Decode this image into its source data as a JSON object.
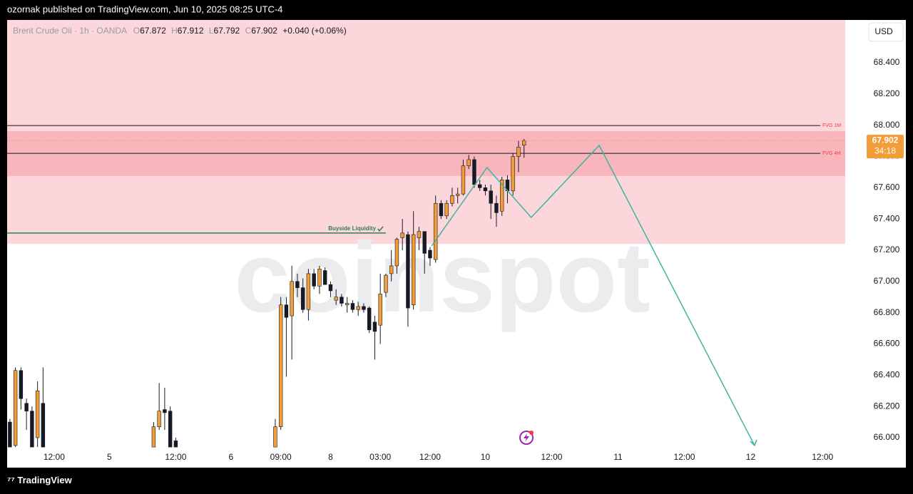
{
  "header": "ozornak published on TradingView.com, Jun 10, 2025 08:25 UTC-4",
  "footer": "TradingView",
  "watermark": "coinspot",
  "chart_data": {
    "type": "candlestick",
    "title": "Brent Crude Oil · 1h · OANDA",
    "legend": {
      "o_label": "O",
      "open": 67.872,
      "h_label": "H",
      "high": 67.912,
      "l_label": "L",
      "low": 67.792,
      "c_label": "C",
      "close": 67.902,
      "change": "+0.040 (+0.06%)"
    },
    "currency": "USD",
    "countdown": "34:18",
    "up_color": "#f29d38",
    "down_color": "#161a25",
    "x": [
      0,
      1,
      2,
      3,
      4,
      5,
      6,
      26,
      27,
      28,
      29,
      30,
      48,
      49,
      50,
      51,
      52,
      53,
      54,
      55,
      56,
      57,
      58,
      59,
      60,
      61,
      62,
      63,
      64,
      65,
      66,
      67,
      68,
      69,
      70,
      71,
      72,
      73,
      74,
      75,
      76,
      77,
      78,
      79,
      80,
      81,
      82,
      83,
      84,
      85,
      86,
      87,
      88,
      89,
      90,
      91,
      92,
      93
    ],
    "open": [
      66.1,
      65.95,
      66.43,
      66.22,
      66.17,
      66.0,
      66.22,
      65.94,
      66.07,
      66.18,
      66.17,
      65.98,
      65.94,
      66.07,
      66.85,
      66.78,
      67.0,
      66.96,
      66.82,
      67.05,
      66.97,
      67.07,
      66.98,
      66.88,
      66.9,
      66.85,
      66.86,
      66.82,
      66.84,
      66.83,
      66.74,
      66.72,
      66.93,
      67.05,
      67.1,
      67.28,
      67.3,
      66.85,
      67.28,
      67.32,
      67.2,
      67.14,
      67.5,
      67.42,
      67.5,
      67.55,
      67.56,
      67.74,
      67.78,
      67.62,
      67.6,
      67.58,
      67.5,
      67.45,
      67.65,
      67.58,
      67.8,
      67.872
    ],
    "high": [
      66.12,
      66.45,
      66.45,
      66.25,
      66.2,
      66.36,
      66.45,
      66.1,
      66.35,
      66.32,
      66.2,
      66.0,
      66.12,
      66.9,
      66.9,
      67.1,
      67.05,
      67.02,
      67.08,
      67.08,
      67.1,
      67.09,
      67.0,
      66.95,
      66.92,
      66.9,
      66.88,
      66.87,
      66.86,
      66.84,
      66.78,
      67.05,
      67.05,
      67.2,
      67.28,
      67.4,
      67.32,
      67.45,
      67.35,
      67.32,
      67.22,
      67.55,
      67.52,
      67.52,
      67.6,
      67.6,
      67.78,
      67.81,
      67.8,
      67.65,
      67.62,
      67.62,
      67.55,
      67.67,
      67.68,
      67.82,
      67.9,
      67.912
    ],
    "low": [
      65.94,
      65.94,
      66.18,
      66.05,
      65.94,
      65.94,
      65.94,
      65.94,
      66.05,
      66.05,
      65.94,
      65.94,
      65.94,
      66.05,
      66.39,
      66.5,
      66.9,
      66.8,
      66.75,
      66.95,
      66.92,
      66.98,
      66.9,
      66.85,
      66.84,
      66.8,
      66.8,
      66.78,
      66.8,
      66.67,
      66.5,
      66.6,
      66.9,
      67.0,
      67.05,
      67.2,
      66.71,
      66.82,
      67.2,
      67.05,
      67.1,
      67.12,
      67.4,
      67.4,
      67.48,
      67.5,
      67.55,
      67.72,
      67.6,
      67.58,
      67.55,
      67.4,
      67.35,
      67.42,
      67.5,
      67.55,
      67.7,
      67.792
    ],
    "close": [
      65.94,
      66.43,
      66.25,
      66.17,
      65.94,
      66.3,
      65.94,
      66.07,
      66.17,
      66.16,
      65.94,
      65.94,
      66.07,
      66.85,
      66.77,
      67.0,
      66.96,
      66.82,
      67.05,
      66.97,
      67.08,
      66.98,
      66.94,
      66.9,
      66.86,
      66.86,
      66.82,
      66.84,
      66.82,
      66.69,
      66.68,
      66.92,
      67.04,
      67.1,
      67.27,
      67.31,
      66.83,
      67.3,
      67.32,
      67.18,
      67.15,
      67.5,
      67.42,
      67.5,
      67.55,
      67.56,
      67.74,
      67.78,
      67.62,
      67.6,
      67.58,
      67.5,
      67.44,
      67.65,
      67.58,
      67.8,
      67.86,
      67.902
    ],
    "xlim": [
      -0.5,
      151.1
    ],
    "xticks": [
      {
        "value": 8,
        "label": "12:00"
      },
      {
        "value": 18,
        "label": "5"
      },
      {
        "value": 30,
        "label": "12:00"
      },
      {
        "value": 40,
        "label": "6"
      },
      {
        "value": 49,
        "label": "09:00"
      },
      {
        "value": 58,
        "label": "8"
      },
      {
        "value": 67,
        "label": "03:00"
      },
      {
        "value": 76,
        "label": "12:00"
      },
      {
        "value": 86,
        "label": "10"
      },
      {
        "value": 98,
        "label": "12:00"
      },
      {
        "value": 110,
        "label": "11"
      },
      {
        "value": 122,
        "label": "12:00"
      },
      {
        "value": 134,
        "label": "12"
      },
      {
        "value": 147,
        "label": "12:00"
      }
    ],
    "ylim": [
      65.936,
      68.674
    ],
    "yticks": [
      {
        "value": 66,
        "label": "66.000"
      },
      {
        "value": 66.2,
        "label": "66.200"
      },
      {
        "value": 66.4,
        "label": "66.400"
      },
      {
        "value": 66.6,
        "label": "66.600"
      },
      {
        "value": 66.8,
        "label": "66.800"
      },
      {
        "value": 67,
        "label": "67.000"
      },
      {
        "value": 67.2,
        "label": "67.200"
      },
      {
        "value": 67.4,
        "label": "67.400"
      },
      {
        "value": 67.6,
        "label": "67.600"
      },
      {
        "value": 67.8,
        "label": "67.800"
      },
      {
        "value": 68,
        "label": "68.000"
      },
      {
        "value": 68.2,
        "label": "68.200"
      },
      {
        "value": 68.4,
        "label": "68.400"
      }
    ],
    "zones": [
      {
        "from": 67.24,
        "to": 68.674,
        "color": "#fbd6da"
      },
      {
        "from": 67.675,
        "to": 67.962,
        "color": "#f8b5bb"
      }
    ],
    "levels": [
      {
        "label": "FVG 1M",
        "value": 67.998
      },
      {
        "label": "FVG 4H",
        "value": 67.82
      }
    ],
    "buyside": {
      "label": "Buyside Liquidity",
      "value": 67.31,
      "x_end": 68
    },
    "projection": {
      "x": [
        76.3,
        86.3,
        94.3,
        106.6,
        134.7
      ],
      "y": [
        67.227,
        67.729,
        67.41,
        67.871,
        65.95
      ],
      "color": "#3fb3a2"
    }
  }
}
